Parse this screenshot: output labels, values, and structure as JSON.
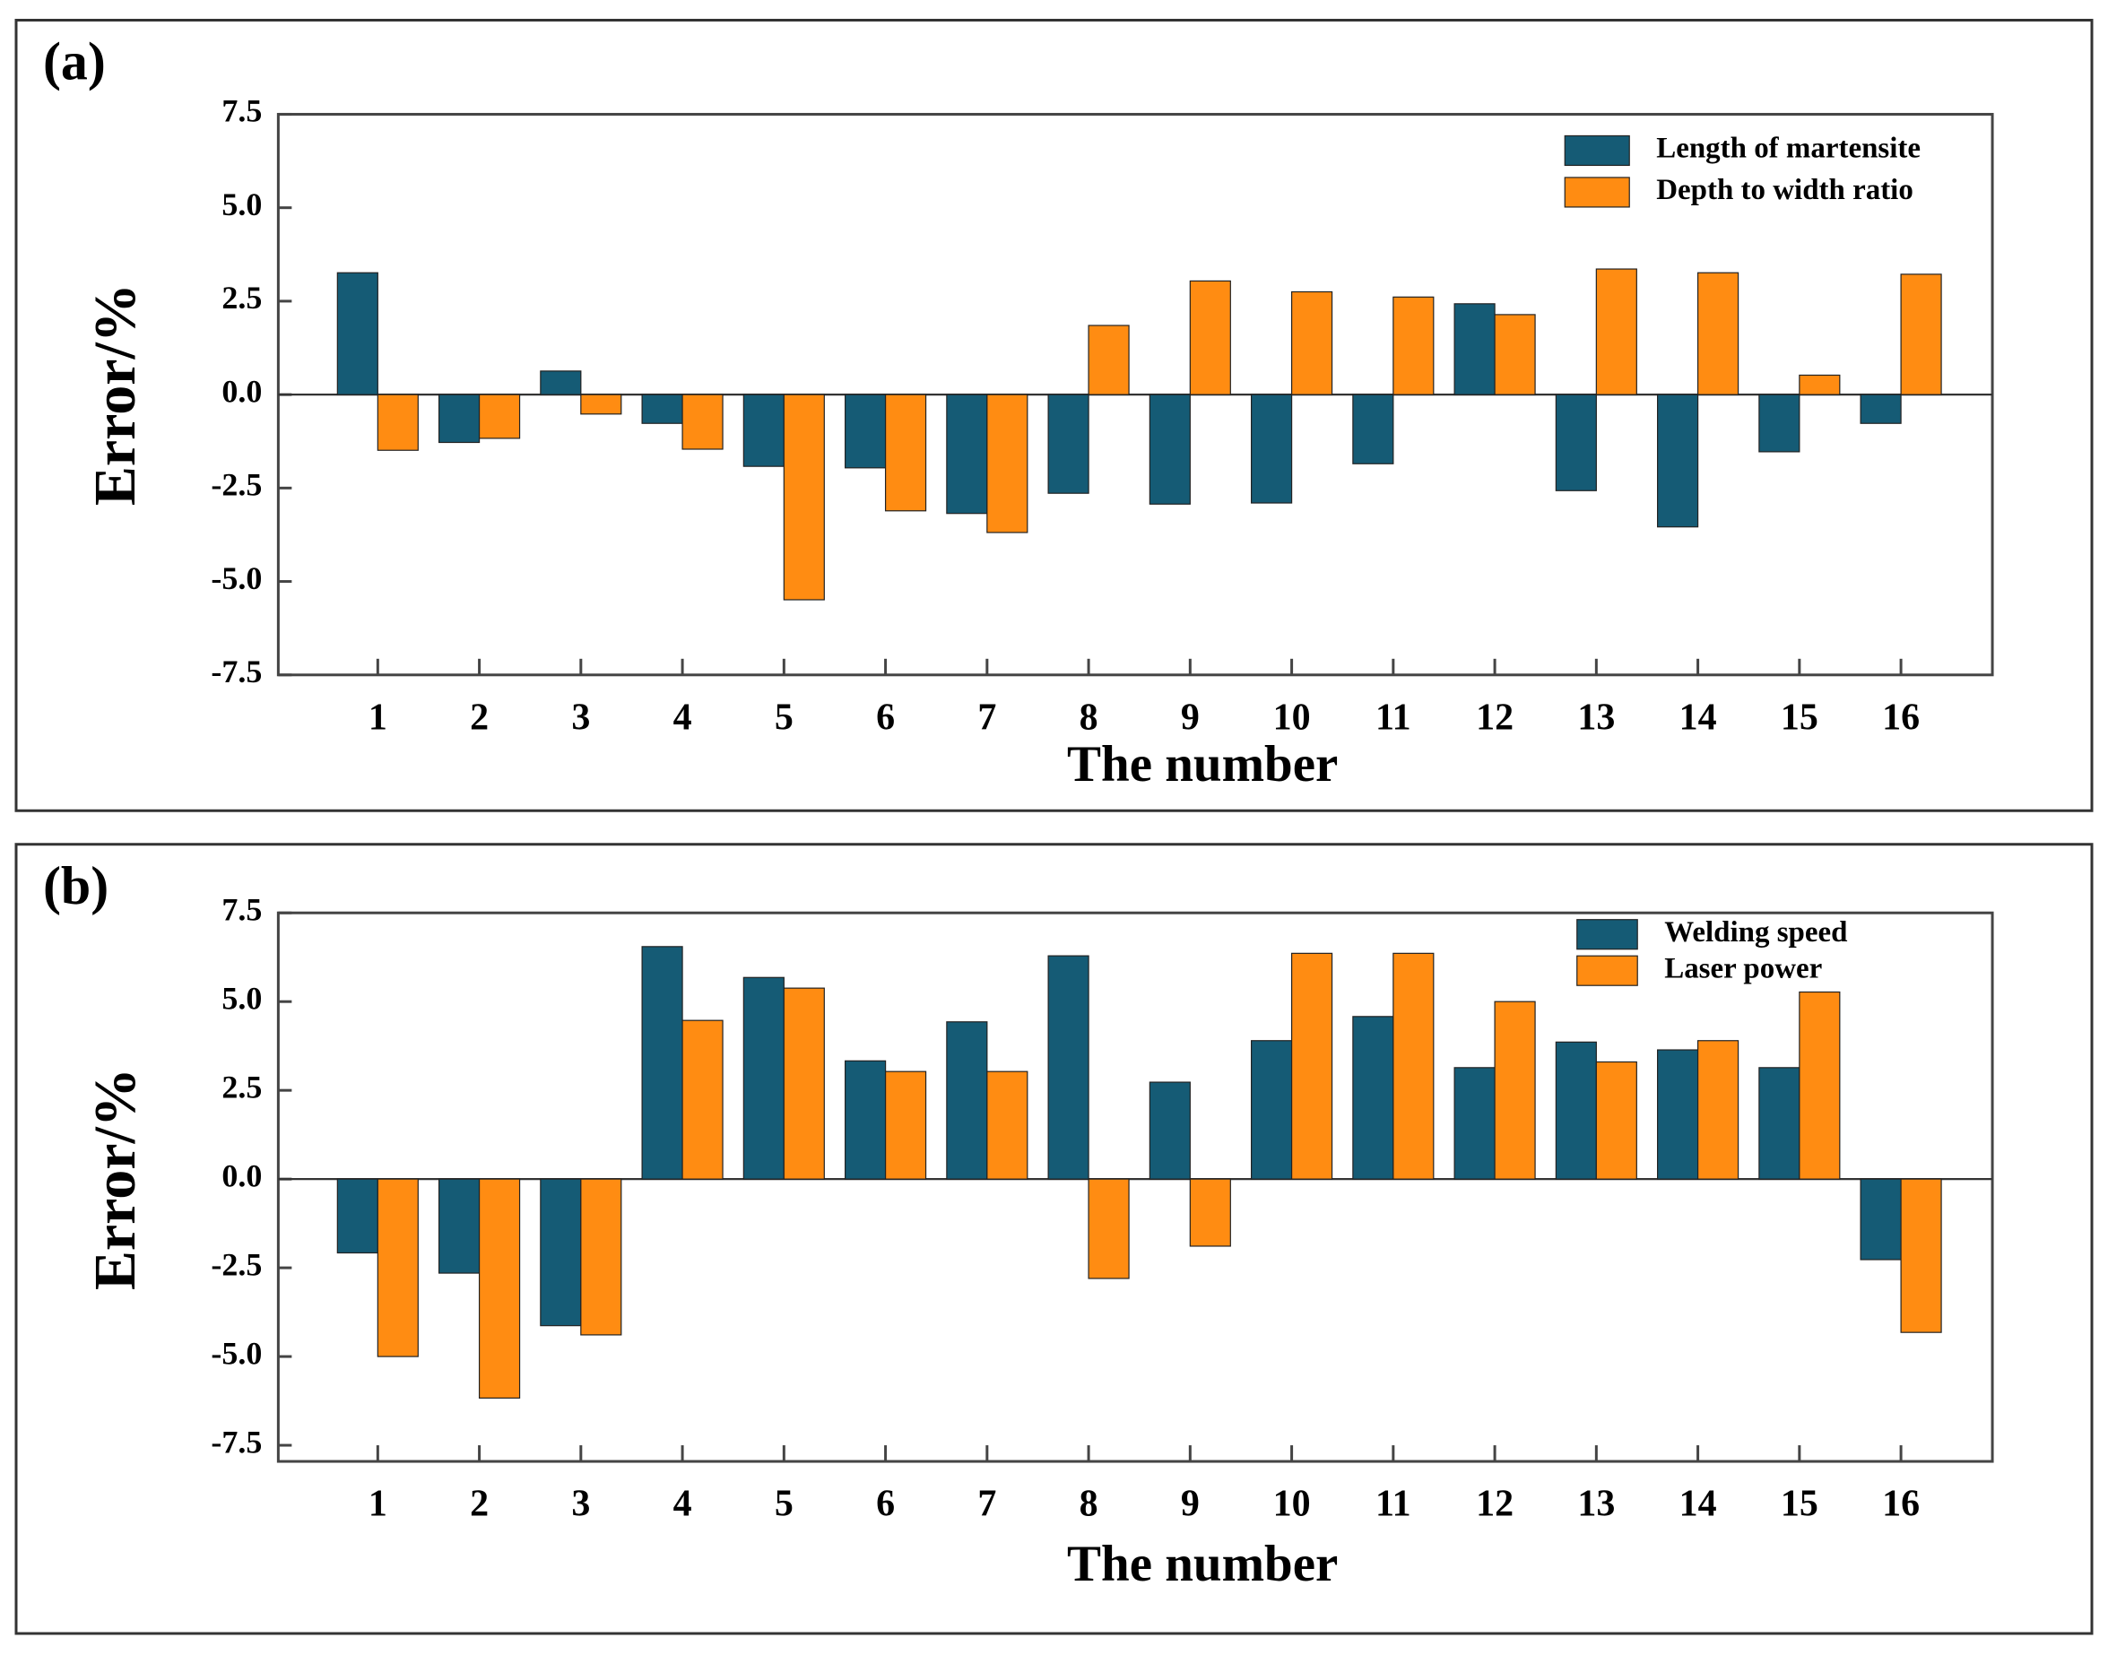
{
  "chart_data": [
    {
      "type": "bar",
      "panel_label": "(a)",
      "x_label": "The number",
      "y_label": "Error/%",
      "categories": [
        "1",
        "2",
        "3",
        "4",
        "5",
        "6",
        "7",
        "8",
        "9",
        "10",
        "11",
        "12",
        "13",
        "14",
        "15",
        "16"
      ],
      "series": [
        {
          "name": "Length of martensite",
          "color": "#155b75",
          "values": [
            3.26,
            -1.28,
            0.63,
            -0.77,
            -1.92,
            -1.96,
            -3.18,
            -2.64,
            -2.93,
            -2.9,
            -1.85,
            2.43,
            -2.57,
            -3.54,
            -1.53,
            -0.77
          ]
        },
        {
          "name": "Depth to width ratio",
          "color": "#ff8c12",
          "values": [
            -1.49,
            -1.17,
            -0.52,
            -1.46,
            -5.49,
            -3.11,
            -3.69,
            1.85,
            3.04,
            2.75,
            2.61,
            2.14,
            3.36,
            3.26,
            0.52,
            3.22
          ]
        }
      ],
      "ylim": [
        -7.5,
        7.5
      ],
      "yticks": [
        -7.5,
        {
          "value": -5,
          "label": "-5.0"
        },
        -2.5,
        {
          "value": 0,
          "label": "0.0"
        },
        2.5,
        {
          "value": 5,
          "label": "5.0"
        },
        7.5
      ],
      "legend": "upper right"
    },
    {
      "type": "bar",
      "panel_label": "(b)",
      "x_label": "The number",
      "y_label": "Error/%",
      "categories": [
        "1",
        "2",
        "3",
        "4",
        "5",
        "6",
        "7",
        "8",
        "9",
        "10",
        "11",
        "12",
        "13",
        "14",
        "15",
        "16"
      ],
      "series": [
        {
          "name": "Welding speed",
          "color": "#155b75",
          "values": [
            -2.08,
            -2.65,
            -4.13,
            6.55,
            5.68,
            3.33,
            4.43,
            6.29,
            2.73,
            3.9,
            4.58,
            3.14,
            3.86,
            3.64,
            3.14,
            -2.27
          ]
        },
        {
          "name": "Laser power",
          "color": "#ff8c12",
          "values": [
            -5.0,
            -6.17,
            -4.39,
            4.47,
            5.38,
            3.03,
            3.03,
            -2.8,
            -1.89,
            6.36,
            6.36,
            5.0,
            3.3,
            3.9,
            5.27,
            -4.32
          ]
        }
      ],
      "ylim": [
        -7.5,
        7.5
      ],
      "yticks": [
        -7.5,
        {
          "value": -5,
          "label": "-5.0"
        },
        -2.5,
        {
          "value": 0,
          "label": "0.0"
        },
        2.5,
        {
          "value": 5,
          "label": "5.0"
        },
        7.5
      ],
      "legend": "upper right"
    }
  ]
}
